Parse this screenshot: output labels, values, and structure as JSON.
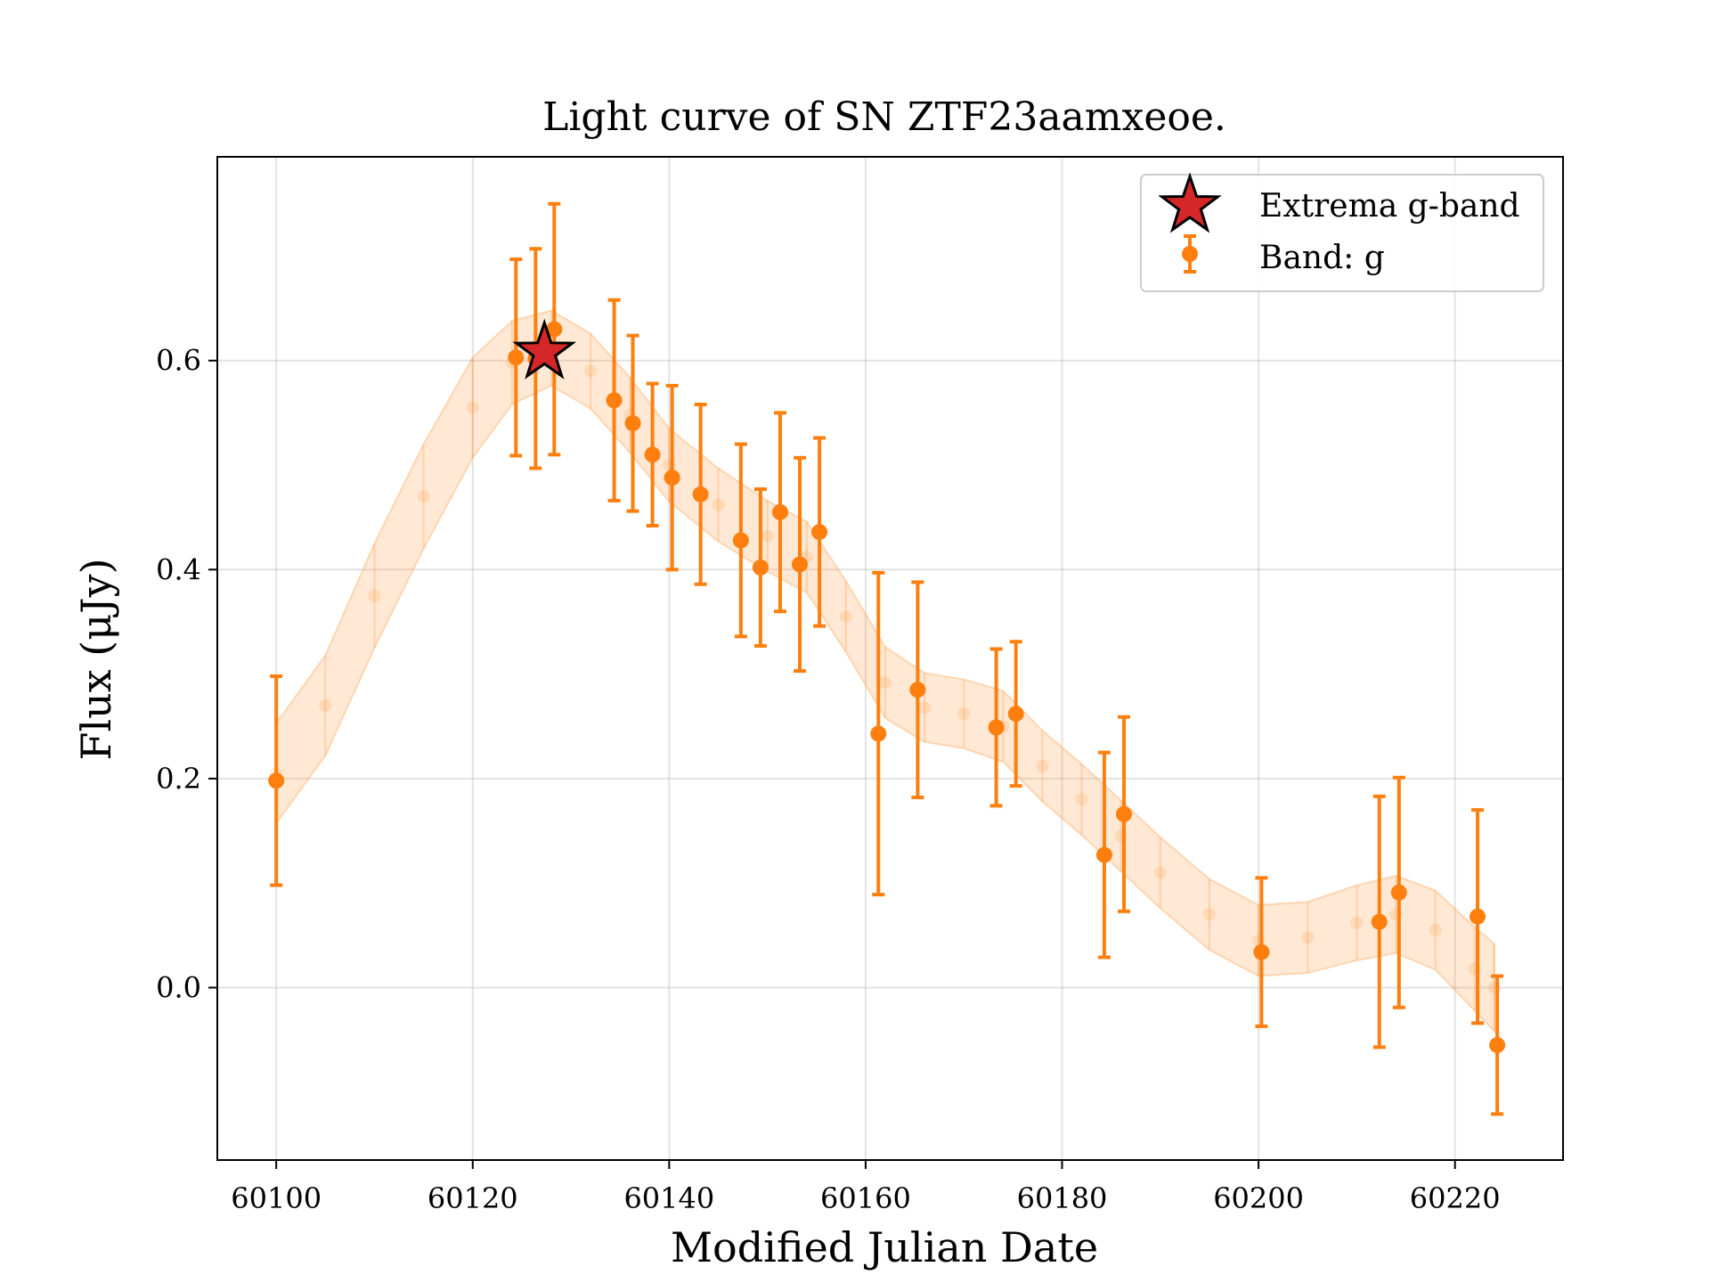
{
  "chart_data": {
    "type": "scatter",
    "title": "Light curve of SN ZTF23aamxeoe.",
    "xlabel": "Modified Julian Date",
    "ylabel": "Flux (μJy)",
    "xlim": [
      60094,
      60231
    ],
    "ylim": [
      -0.165,
      0.795
    ],
    "xticks": [
      60100,
      60120,
      60140,
      60160,
      60180,
      60200,
      60220
    ],
    "yticks": [
      0.0,
      0.2,
      0.4,
      0.6
    ],
    "grid": true,
    "legend_position": "top-right",
    "series": [
      {
        "name": "Band: g",
        "kind": "errorbar",
        "color": "#ff7f0e",
        "points": [
          {
            "x": 60100.0,
            "y": 0.198,
            "err": 0.1
          },
          {
            "x": 60124.4,
            "y": 0.603,
            "err": 0.094
          },
          {
            "x": 60126.4,
            "y": 0.602,
            "err": 0.105
          },
          {
            "x": 60128.3,
            "y": 0.63,
            "err": 0.12
          },
          {
            "x": 60134.4,
            "y": 0.562,
            "err": 0.096
          },
          {
            "x": 60136.3,
            "y": 0.54,
            "err": 0.084
          },
          {
            "x": 60138.3,
            "y": 0.51,
            "err": 0.068
          },
          {
            "x": 60140.3,
            "y": 0.488,
            "err": 0.088
          },
          {
            "x": 60143.2,
            "y": 0.472,
            "err": 0.086
          },
          {
            "x": 60147.3,
            "y": 0.428,
            "err": 0.092
          },
          {
            "x": 60149.3,
            "y": 0.402,
            "err": 0.075
          },
          {
            "x": 60151.3,
            "y": 0.455,
            "err": 0.095
          },
          {
            "x": 60153.3,
            "y": 0.405,
            "err": 0.102
          },
          {
            "x": 60155.3,
            "y": 0.436,
            "err": 0.09
          },
          {
            "x": 60161.3,
            "y": 0.243,
            "err": 0.154
          },
          {
            "x": 60165.3,
            "y": 0.285,
            "err": 0.103
          },
          {
            "x": 60173.3,
            "y": 0.249,
            "err": 0.075
          },
          {
            "x": 60175.3,
            "y": 0.262,
            "err": 0.069
          },
          {
            "x": 60184.3,
            "y": 0.127,
            "err": 0.098
          },
          {
            "x": 60186.3,
            "y": 0.166,
            "err": 0.093
          },
          {
            "x": 60200.3,
            "y": 0.034,
            "err": 0.071
          },
          {
            "x": 60212.3,
            "y": 0.063,
            "err": 0.12
          },
          {
            "x": 60214.3,
            "y": 0.091,
            "err": 0.11
          },
          {
            "x": 60222.3,
            "y": 0.068,
            "err": 0.102
          },
          {
            "x": 60224.3,
            "y": -0.055,
            "err": 0.066
          }
        ]
      },
      {
        "name": "Extrema g-band",
        "kind": "marker",
        "marker": "star",
        "color": "#d62728",
        "points": [
          {
            "x": 60127.3,
            "y": 0.608
          }
        ]
      },
      {
        "kind": "model-band",
        "color": "#ff7f0e",
        "alpha": 0.18,
        "points": [
          {
            "x": 60100,
            "y": 0.205,
            "err": 0.048
          },
          {
            "x": 60105,
            "y": 0.27,
            "err": 0.048
          },
          {
            "x": 60110,
            "y": 0.375,
            "err": 0.05
          },
          {
            "x": 60115,
            "y": 0.47,
            "err": 0.05
          },
          {
            "x": 60120,
            "y": 0.555,
            "err": 0.048
          },
          {
            "x": 60124,
            "y": 0.598,
            "err": 0.04
          },
          {
            "x": 60128,
            "y": 0.612,
            "err": 0.036
          },
          {
            "x": 60132,
            "y": 0.59,
            "err": 0.036
          },
          {
            "x": 60136,
            "y": 0.548,
            "err": 0.036
          },
          {
            "x": 60140,
            "y": 0.5,
            "err": 0.035
          },
          {
            "x": 60145,
            "y": 0.462,
            "err": 0.035
          },
          {
            "x": 60150,
            "y": 0.432,
            "err": 0.034
          },
          {
            "x": 60154,
            "y": 0.412,
            "err": 0.034
          },
          {
            "x": 60158,
            "y": 0.355,
            "err": 0.034
          },
          {
            "x": 60162,
            "y": 0.292,
            "err": 0.034
          },
          {
            "x": 60166,
            "y": 0.268,
            "err": 0.033
          },
          {
            "x": 60170,
            "y": 0.262,
            "err": 0.033
          },
          {
            "x": 60174,
            "y": 0.25,
            "err": 0.034
          },
          {
            "x": 60178,
            "y": 0.212,
            "err": 0.034
          },
          {
            "x": 60182,
            "y": 0.18,
            "err": 0.034
          },
          {
            "x": 60186,
            "y": 0.145,
            "err": 0.034
          },
          {
            "x": 60190,
            "y": 0.11,
            "err": 0.034
          },
          {
            "x": 60195,
            "y": 0.07,
            "err": 0.034
          },
          {
            "x": 60200,
            "y": 0.045,
            "err": 0.034
          },
          {
            "x": 60205,
            "y": 0.048,
            "err": 0.034
          },
          {
            "x": 60210,
            "y": 0.062,
            "err": 0.036
          },
          {
            "x": 60214,
            "y": 0.07,
            "err": 0.037
          },
          {
            "x": 60218,
            "y": 0.055,
            "err": 0.038
          },
          {
            "x": 60222,
            "y": 0.018,
            "err": 0.04
          },
          {
            "x": 60224,
            "y": 0.0,
            "err": 0.042
          }
        ]
      }
    ],
    "legend": [
      {
        "label": "Extrema g-band",
        "icon": "star-marker-icon"
      },
      {
        "label": "Band: g",
        "icon": "errorbar-marker-icon"
      }
    ]
  }
}
